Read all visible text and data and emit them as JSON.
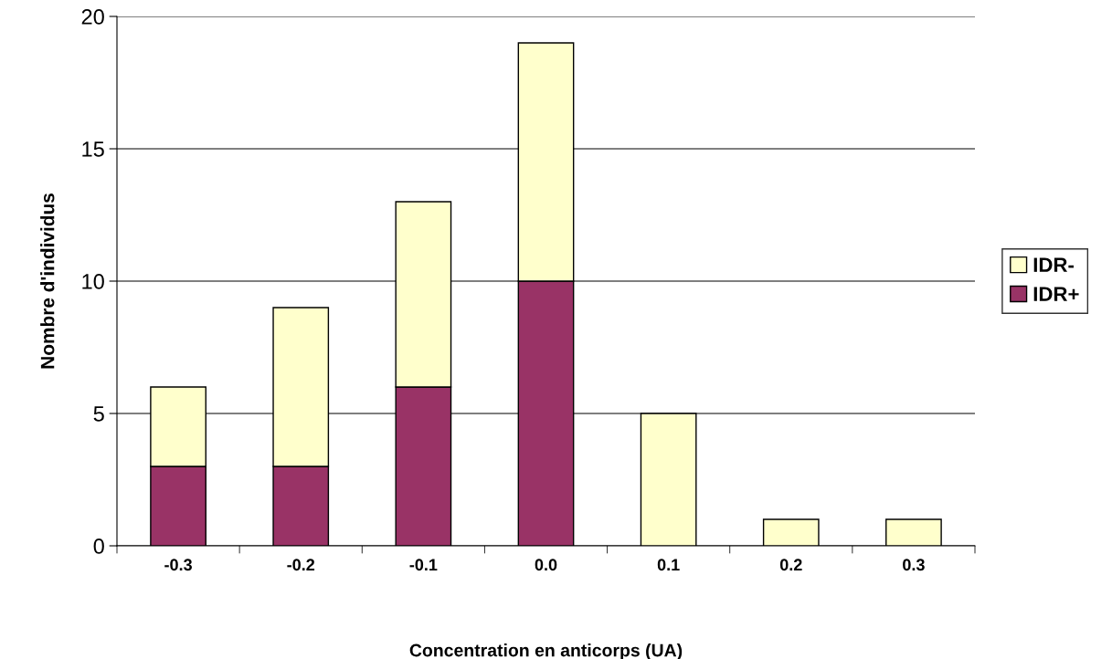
{
  "chart_data": {
    "type": "bar",
    "stacked": true,
    "xlabel": "Concentration en anticorps (UA)",
    "ylabel": "Nombre d'individus",
    "categories": [
      "-0.3",
      "-0.2",
      "-0.1",
      "0.0",
      "0.1",
      "0.2",
      "0.3"
    ],
    "series": [
      {
        "name": "IDR+",
        "color": "#993366",
        "values": [
          3,
          3,
          6,
          10,
          0,
          0,
          0
        ]
      },
      {
        "name": "IDR-",
        "color": "#ffffcc",
        "values": [
          3,
          6,
          7,
          9,
          5,
          1,
          1
        ]
      }
    ],
    "ylim": [
      0,
      20
    ],
    "yticks": [
      0,
      5,
      10,
      15,
      20
    ],
    "grid": "y",
    "legend": "right"
  }
}
